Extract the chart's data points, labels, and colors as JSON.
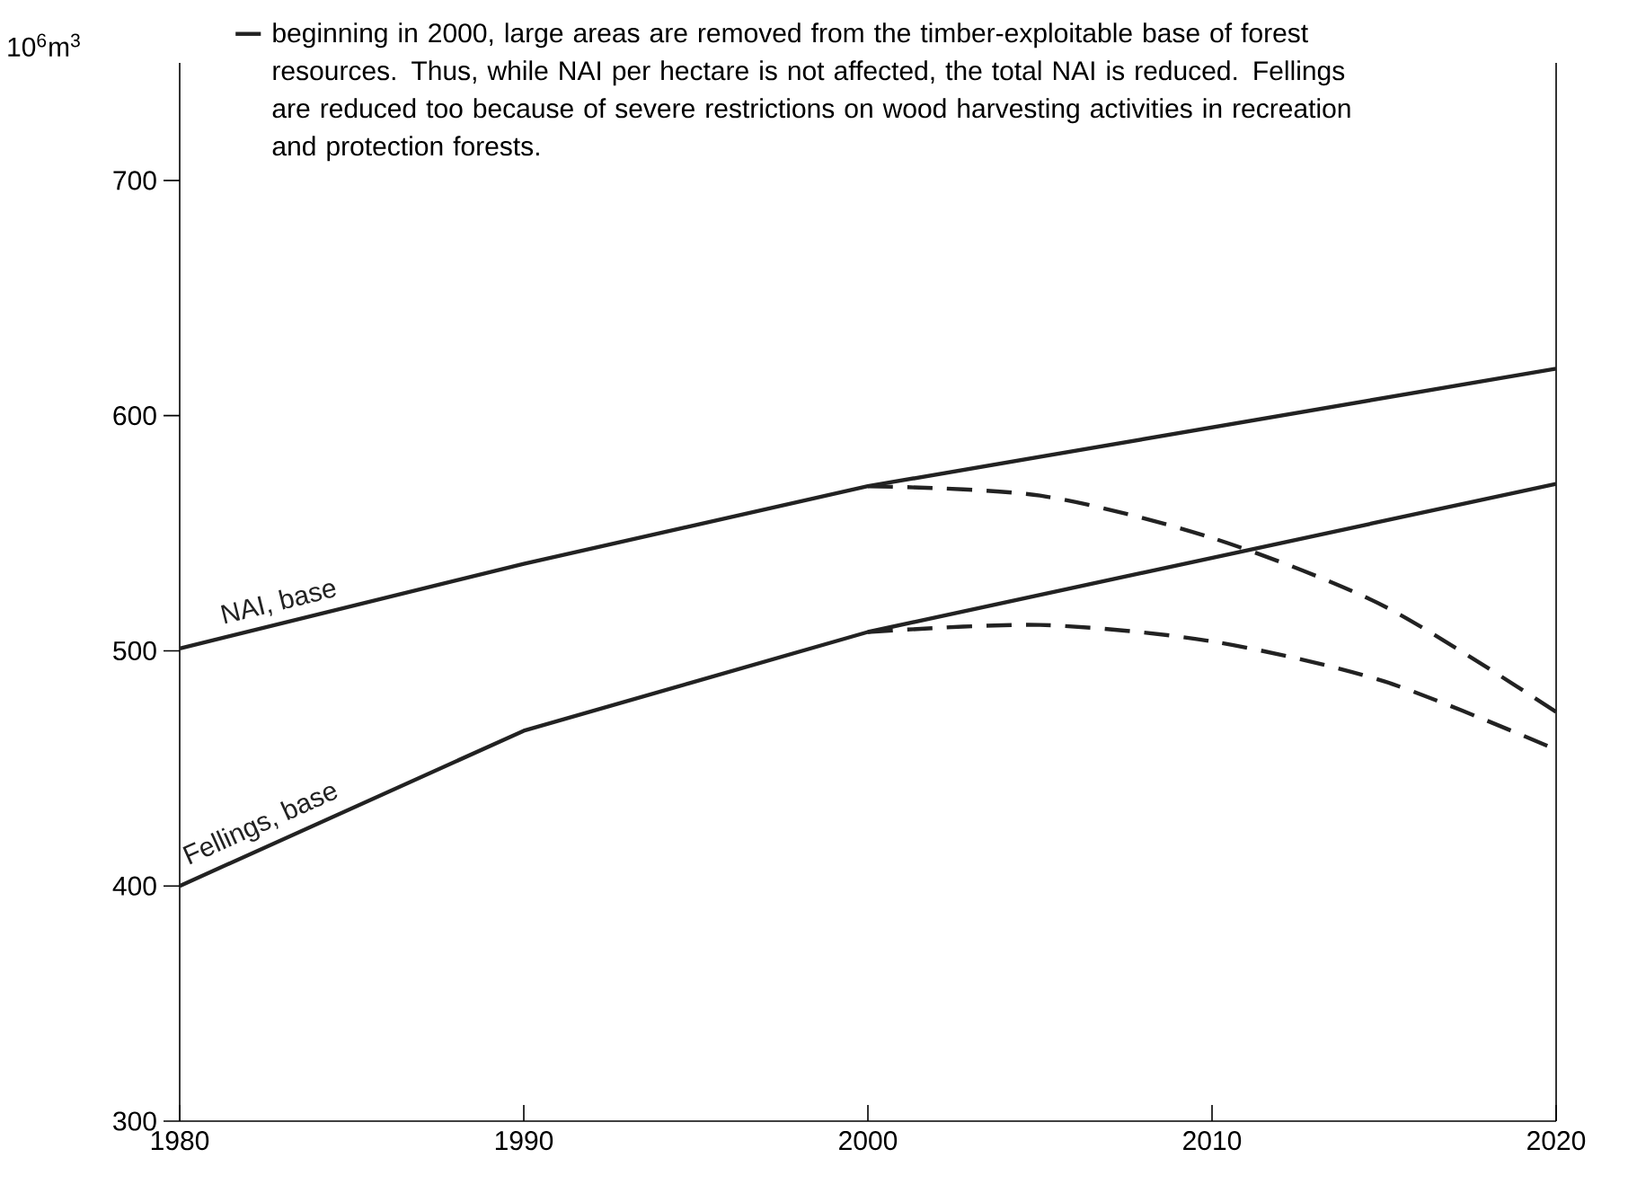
{
  "chart_data": {
    "type": "line",
    "ylabel": "10$^{6}$m$^{3}$",
    "x": [
      1980,
      1990,
      2000,
      2020
    ],
    "xlim": [
      1980,
      2020
    ],
    "xticks": [
      1980,
      1990,
      2000,
      2010,
      2020
    ],
    "ylim": [
      300,
      750
    ],
    "yticks": [
      300,
      400,
      500,
      600,
      700
    ],
    "grid": false,
    "legend": "top",
    "marker": "none",
    "series": [
      {
        "name": "NAI, base",
        "color": "#222222",
        "line_style": "solid",
        "values": [
          501,
          537,
          570,
          620
        ]
      },
      {
        "name": "Fellings, base",
        "color": "#222222",
        "line_style": "solid",
        "values": [
          400,
          466,
          508,
          571
        ]
      },
      {
        "name": "beginning in 2000, large areas are removed from the timber-exploitable base of forest resources. Thus, while NAI per hectare is not affected, the total NAI is reduced. Fellings are reduced too because of severe restrictions on wood harvesting activities in recreation and protection forests.",
        "color": "#222222",
        "line_style": "dashed",
        "x": [
          2000,
          2005,
          2010,
          2015,
          2020
        ],
        "values": [
          570,
          566,
          548,
          519,
          474
        ]
      },
      {
        "color": "#222222",
        "line_style": "dashed",
        "x": [
          2000,
          2005,
          2010,
          2015,
          2020
        ],
        "values": [
          508,
          511,
          504,
          487,
          458
        ]
      }
    ]
  }
}
